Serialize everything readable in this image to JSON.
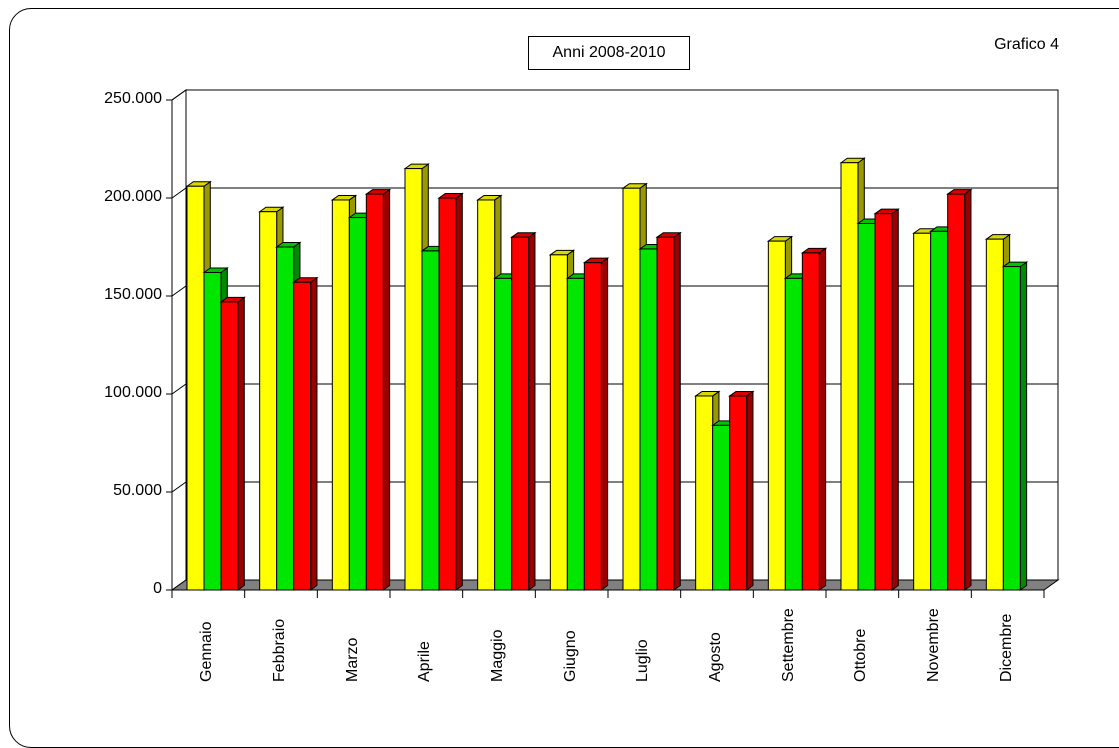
{
  "chart_data": {
    "type": "bar",
    "title": "Anni 2008-2010",
    "tag": "Grafico 4",
    "categories": [
      "Gennaio",
      "Febbraio",
      "Marzo",
      "Aprile",
      "Maggio",
      "Giugno",
      "Luglio",
      "Agosto",
      "Settembre",
      "Ottobre",
      "Novembre",
      "Dicembre"
    ],
    "series": [
      {
        "color": "#ffff00",
        "values": [
          206000,
          193000,
          199000,
          215000,
          199000,
          171000,
          205000,
          99000,
          178000,
          218000,
          182000,
          179000
        ]
      },
      {
        "color": "#00e600",
        "values": [
          162000,
          175000,
          190000,
          173000,
          159000,
          159000,
          174000,
          84000,
          159000,
          187000,
          183000,
          165000
        ]
      },
      {
        "color": "#ff0000",
        "values": [
          147000,
          157000,
          202000,
          200000,
          180000,
          167000,
          180000,
          99000,
          172000,
          192000,
          202000,
          null
        ]
      }
    ],
    "ylim": [
      0,
      250000
    ],
    "yticks": [
      "0",
      "50.000",
      "100.000",
      "150.000",
      "200.000",
      "250.000"
    ],
    "ytick_values": [
      0,
      50000,
      100000,
      150000,
      200000,
      250000
    ],
    "grid": true,
    "legend": "none",
    "style": "3d-bars"
  }
}
